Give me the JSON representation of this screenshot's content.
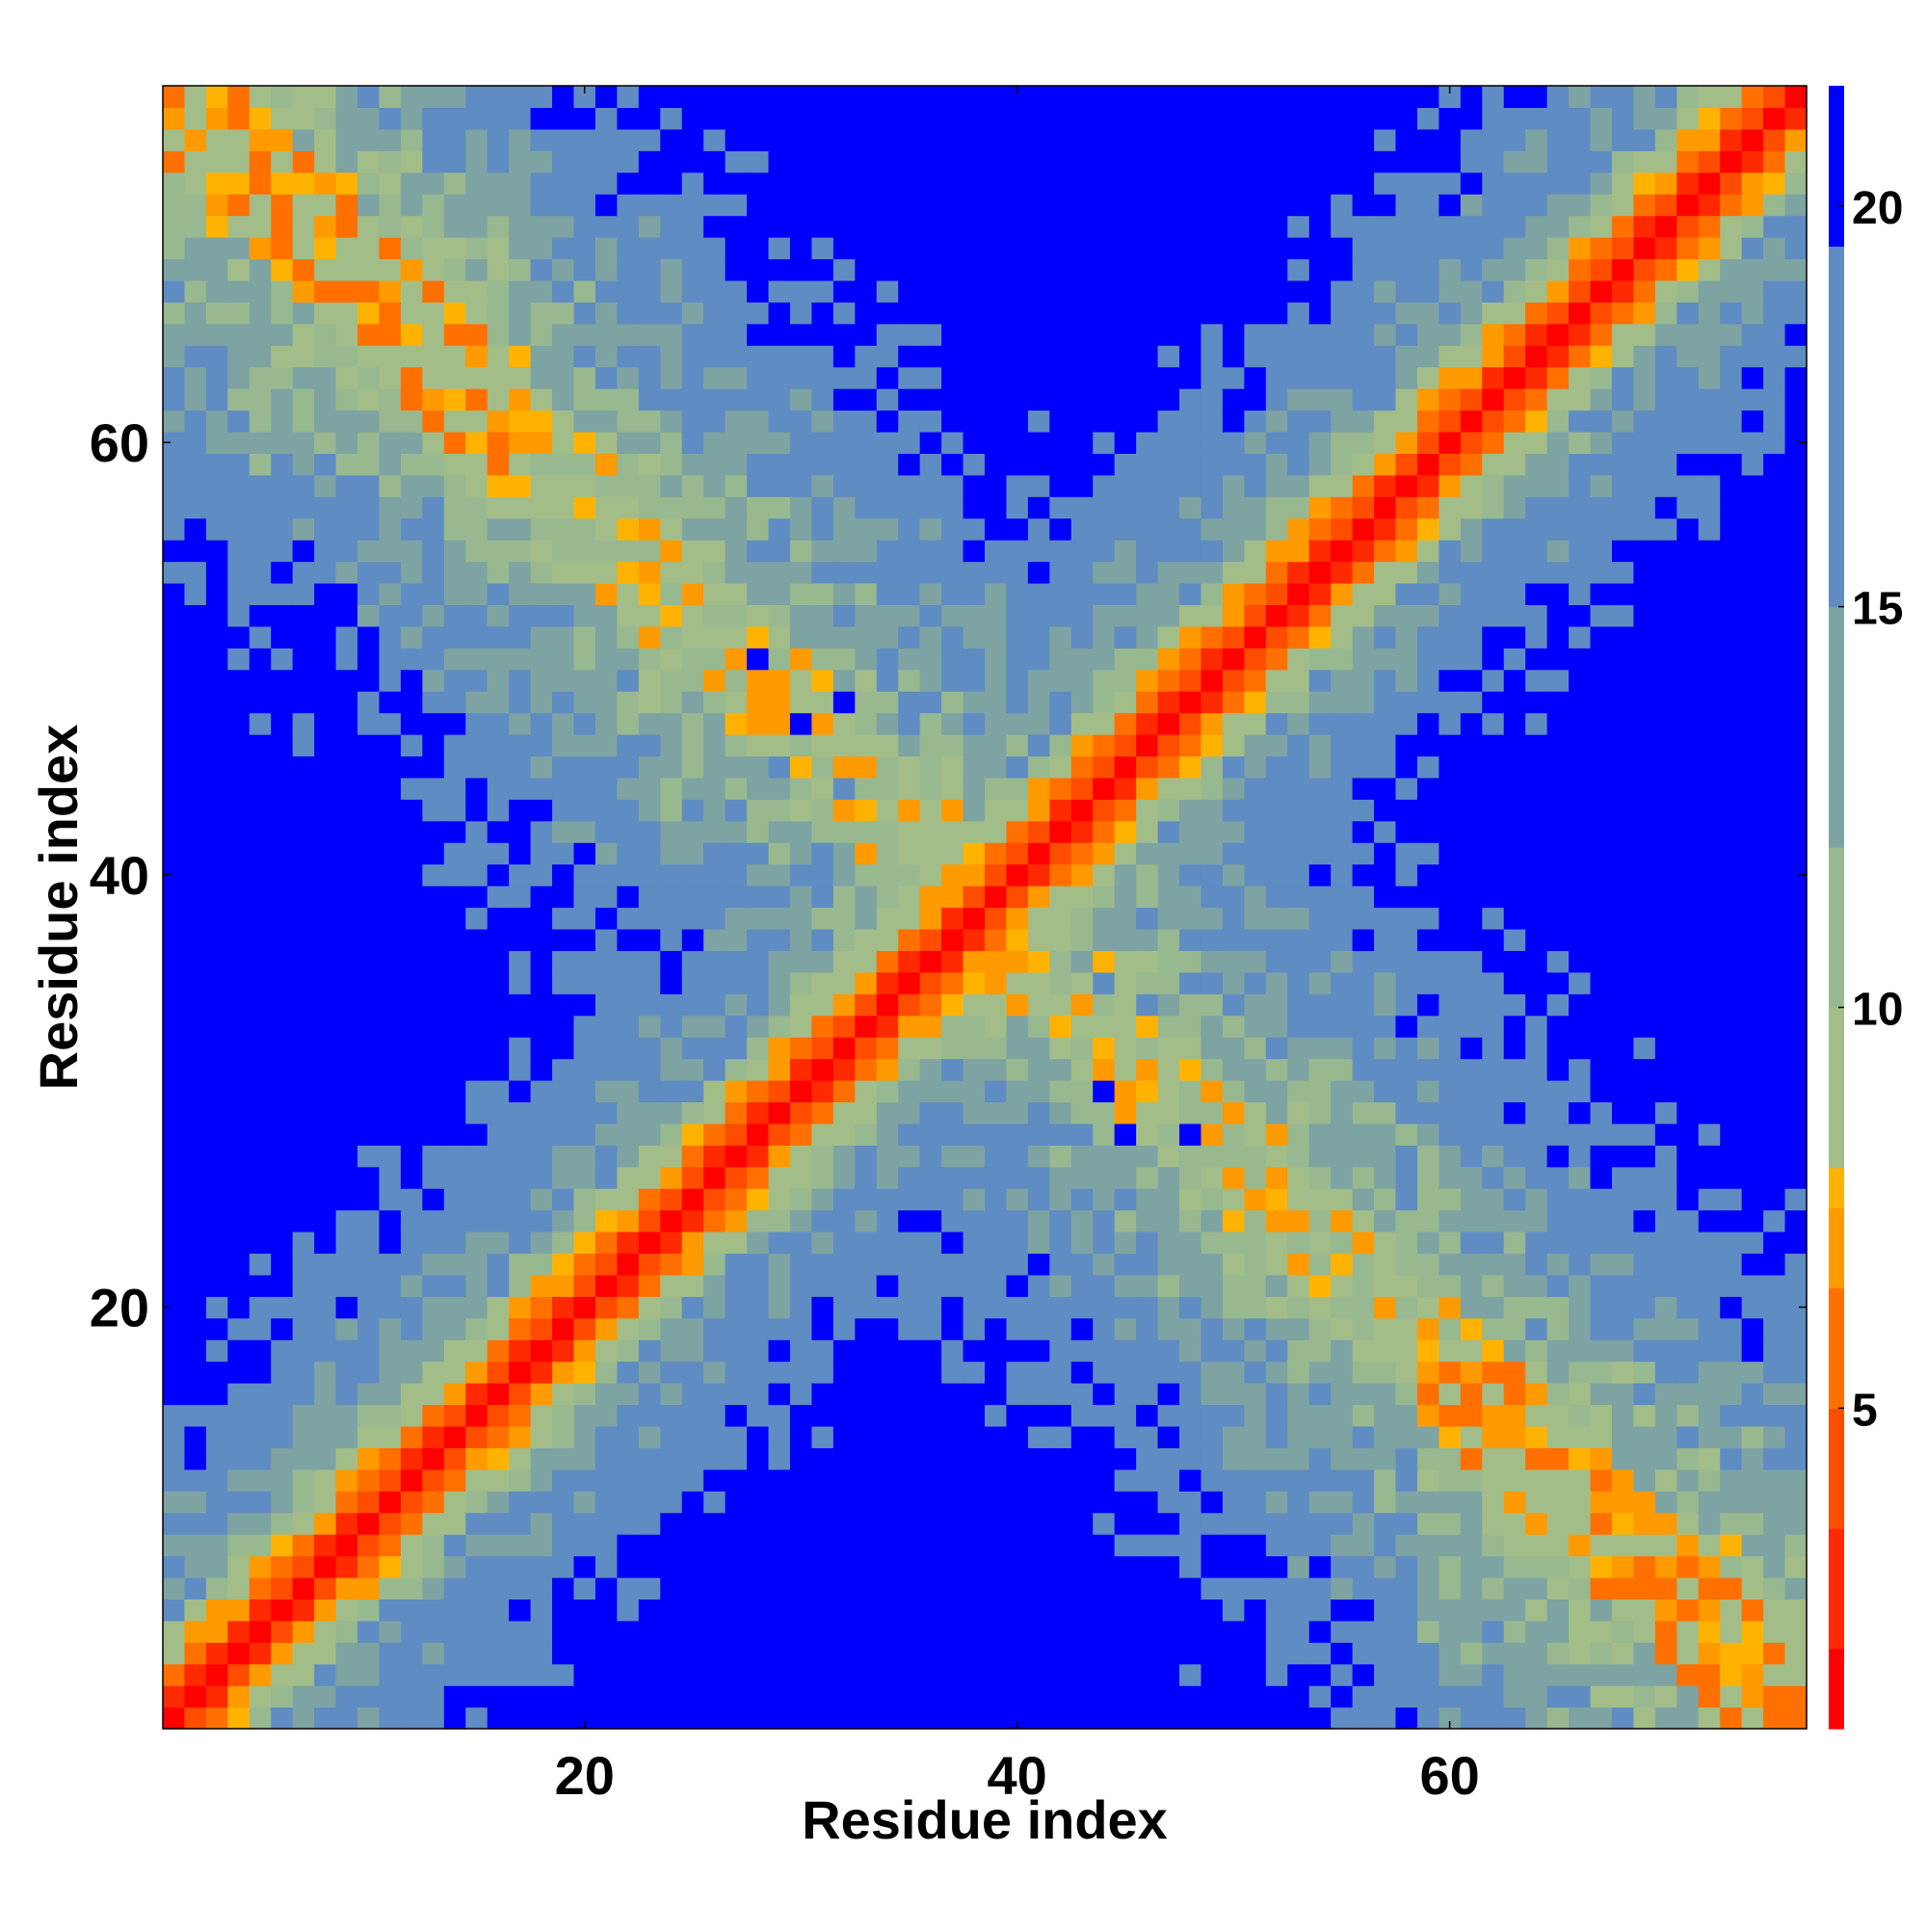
{
  "chart_data": {
    "type": "heatmap",
    "title": "",
    "xlabel": "Residue index",
    "ylabel": "Residue index",
    "n": 76,
    "xlim": [
      0.5,
      76.5
    ],
    "ylim": [
      0.5,
      76.5
    ],
    "x_ticks": [
      20,
      40,
      60
    ],
    "y_ticks": [
      20,
      40,
      60
    ],
    "x_tick_labels": [
      "20",
      "40",
      "60"
    ],
    "y_tick_labels": [
      "20",
      "40",
      "60"
    ],
    "colorbar": {
      "range": [
        1,
        21.5
      ],
      "ticks": [
        5,
        10,
        15,
        20
      ],
      "tick_labels": [
        "5",
        "10",
        "15",
        "20"
      ],
      "stops": [
        {
          "from": 1.0,
          "to": 2.0,
          "color": "#ff0000"
        },
        {
          "from": 2.0,
          "to": 3.5,
          "color": "#ff2a00"
        },
        {
          "from": 3.5,
          "to": 5.0,
          "color": "#ff4d00"
        },
        {
          "from": 5.0,
          "to": 6.5,
          "color": "#ff7000"
        },
        {
          "from": 6.5,
          "to": 7.5,
          "color": "#ff9a00"
        },
        {
          "from": 7.5,
          "to": 8.0,
          "color": "#ffb300"
        },
        {
          "from": 8.0,
          "to": 10.0,
          "color": "#a3bd88"
        },
        {
          "from": 10.0,
          "to": 12.0,
          "color": "#98b890"
        },
        {
          "from": 12.0,
          "to": 15.0,
          "color": "#7ea3a3"
        },
        {
          "from": 15.0,
          "to": 19.5,
          "color": "#5f8cc2"
        },
        {
          "from": 19.5,
          "to": 21.5,
          "color": "#0000ff"
        }
      ]
    },
    "grid": false,
    "legend": "colorbar-right",
    "structure": {
      "description_free": true,
      "main_diagonal": "low distance band along i=j widening to ~20 residues",
      "anti_diagonal": "second band along i+j=77"
    }
  }
}
